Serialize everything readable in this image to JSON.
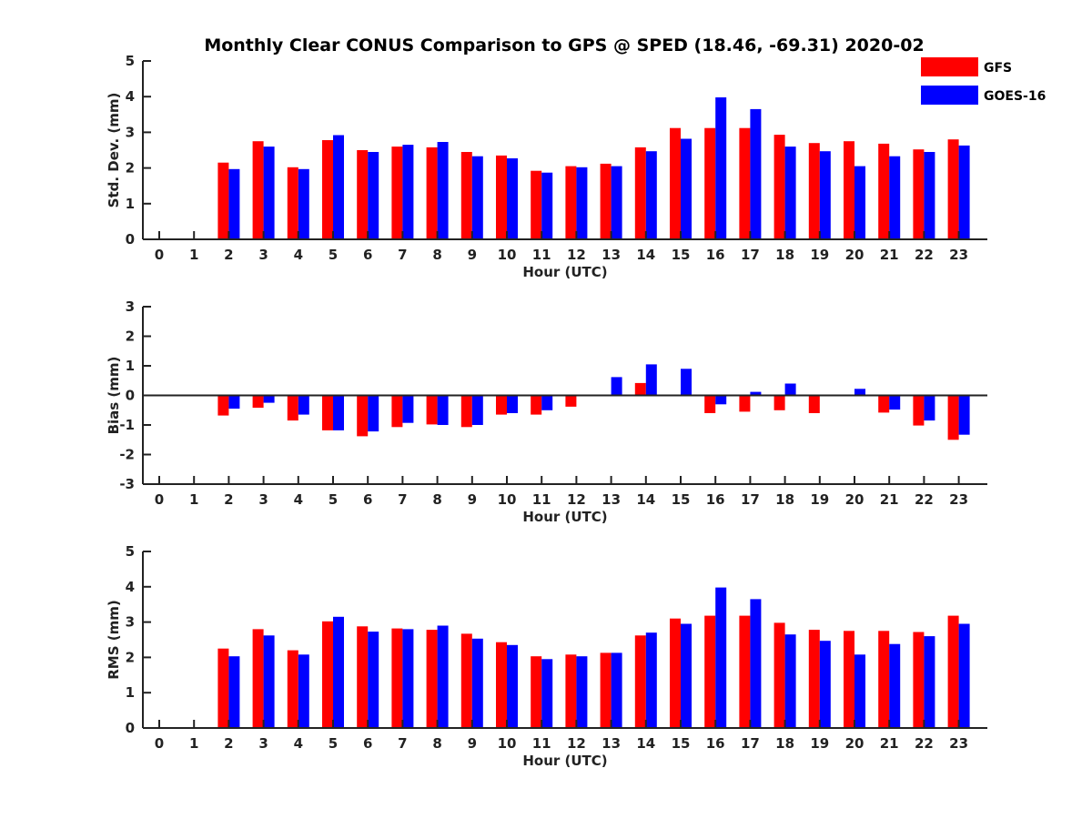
{
  "title": "Monthly Clear CONUS Comparison to GPS @ SPED (18.46, -69.31) 2020-02",
  "colors": {
    "GFS": "#ff0000",
    "GOES-16": "#0000ff"
  },
  "legend": {
    "placement": "top-right",
    "entries": [
      "GFS",
      "GOES-16"
    ]
  },
  "chart_data": [
    {
      "type": "bar",
      "xlabel": "Hour (UTC)",
      "ylabel": "Std. Dev. (mm)",
      "ylim": [
        0,
        5
      ],
      "yticks": [
        0,
        1,
        2,
        3,
        4,
        5
      ],
      "categories": [
        "0",
        "1",
        "2",
        "3",
        "4",
        "5",
        "6",
        "7",
        "8",
        "9",
        "10",
        "11",
        "12",
        "13",
        "14",
        "15",
        "16",
        "17",
        "18",
        "19",
        "20",
        "21",
        "22",
        "23"
      ],
      "series": [
        {
          "name": "GFS",
          "values": [
            null,
            null,
            2.15,
            2.75,
            2.02,
            2.78,
            2.5,
            2.6,
            2.58,
            2.45,
            2.35,
            1.92,
            2.05,
            2.12,
            2.58,
            3.12,
            3.12,
            3.12,
            2.93,
            2.7,
            2.75,
            2.68,
            2.52,
            2.8
          ]
        },
        {
          "name": "GOES-16",
          "values": [
            null,
            null,
            1.97,
            2.6,
            1.97,
            2.92,
            2.45,
            2.65,
            2.73,
            2.33,
            2.27,
            1.87,
            2.02,
            2.05,
            2.47,
            2.82,
            3.98,
            3.65,
            2.6,
            2.47,
            2.05,
            2.33,
            2.45,
            2.63
          ]
        }
      ]
    },
    {
      "type": "bar",
      "xlabel": "Hour (UTC)",
      "ylabel": "Bias (mm)",
      "ylim": [
        -3,
        3
      ],
      "yticks": [
        -3,
        -2,
        -1,
        0,
        1,
        2,
        3
      ],
      "zero_line": true,
      "categories": [
        "0",
        "1",
        "2",
        "3",
        "4",
        "5",
        "6",
        "7",
        "8",
        "9",
        "10",
        "11",
        "12",
        "13",
        "14",
        "15",
        "16",
        "17",
        "18",
        "19",
        "20",
        "21",
        "22",
        "23"
      ],
      "series": [
        {
          "name": "GFS",
          "values": [
            null,
            null,
            -0.68,
            -0.42,
            -0.85,
            -1.18,
            -1.38,
            -1.07,
            -0.98,
            -1.07,
            -0.65,
            -0.65,
            -0.38,
            0.0,
            0.42,
            0.02,
            -0.6,
            -0.55,
            -0.5,
            -0.6,
            0.0,
            -0.58,
            -1.02,
            -1.5
          ]
        },
        {
          "name": "GOES-16",
          "values": [
            null,
            null,
            -0.45,
            -0.25,
            -0.65,
            -1.18,
            -1.22,
            -0.93,
            -1.0,
            -1.0,
            -0.6,
            -0.5,
            0.0,
            0.62,
            1.05,
            0.9,
            -0.3,
            0.12,
            0.4,
            0.02,
            0.22,
            -0.48,
            -0.85,
            -1.33
          ]
        }
      ]
    },
    {
      "type": "bar",
      "xlabel": "Hour (UTC)",
      "ylabel": "RMS (mm)",
      "ylim": [
        0,
        5
      ],
      "yticks": [
        0,
        1,
        2,
        3,
        4,
        5
      ],
      "categories": [
        "0",
        "1",
        "2",
        "3",
        "4",
        "5",
        "6",
        "7",
        "8",
        "9",
        "10",
        "11",
        "12",
        "13",
        "14",
        "15",
        "16",
        "17",
        "18",
        "19",
        "20",
        "21",
        "22",
        "23"
      ],
      "series": [
        {
          "name": "GFS",
          "values": [
            null,
            null,
            2.25,
            2.8,
            2.2,
            3.02,
            2.88,
            2.82,
            2.78,
            2.67,
            2.43,
            2.03,
            2.08,
            2.13,
            2.62,
            3.1,
            3.18,
            3.18,
            2.98,
            2.78,
            2.75,
            2.75,
            2.72,
            3.18
          ]
        },
        {
          "name": "GOES-16",
          "values": [
            null,
            null,
            2.03,
            2.62,
            2.08,
            3.15,
            2.73,
            2.8,
            2.9,
            2.53,
            2.35,
            1.95,
            2.03,
            2.13,
            2.7,
            2.95,
            3.98,
            3.65,
            2.65,
            2.47,
            2.08,
            2.38,
            2.6,
            2.95
          ]
        }
      ]
    }
  ]
}
